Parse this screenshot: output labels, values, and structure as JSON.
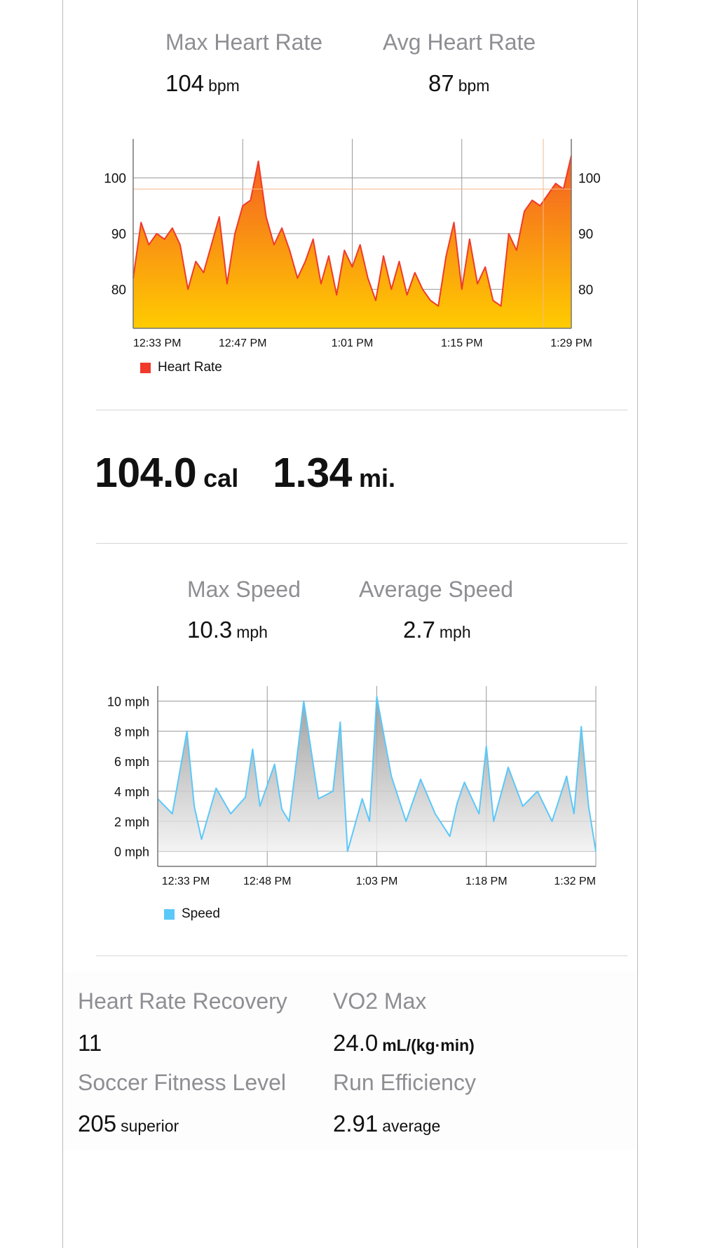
{
  "colors": {
    "heart_rate_line": "#f03a2b",
    "heart_rate_fill_top": "#f45c24",
    "heart_rate_fill_bottom": "#ffcc00",
    "speed_line": "#5bc8fa",
    "speed_fill": "#c9c9c9",
    "label_gray": "#8e8e93"
  },
  "heart_rate": {
    "max_label": "Max Heart Rate",
    "max_value": "104",
    "max_unit": "bpm",
    "avg_label": "Avg Heart Rate",
    "avg_value": "87",
    "avg_unit": "bpm",
    "legend": "Heart Rate"
  },
  "totals": {
    "calories_value": "104.0",
    "calories_unit": "cal",
    "distance_value": "1.34",
    "distance_unit": "mi."
  },
  "speed": {
    "max_label": "Max Speed",
    "max_value": "10.3",
    "max_unit": "mph",
    "avg_label": "Average Speed",
    "avg_value": "2.7",
    "avg_unit": "mph",
    "legend": "Speed"
  },
  "metrics": {
    "hrr_label": "Heart Rate Recovery",
    "hrr_value": "11",
    "vo2_label": "VO2 Max",
    "vo2_value": "24.0",
    "vo2_unit": "mL/(kg·min)",
    "sfl_label": "Soccer Fitness Level",
    "sfl_value": "205",
    "sfl_unit": "superior",
    "re_label": "Run Efficiency",
    "re_value": "2.91",
    "re_unit": "average"
  },
  "chart_data": [
    {
      "type": "area",
      "legend": [
        "Heart Rate"
      ],
      "x_ticks": [
        "12:33 PM",
        "12:47 PM",
        "1:01 PM",
        "1:15 PM",
        "1:29 PM"
      ],
      "y_ticks": [
        80,
        90,
        100
      ],
      "ylim": [
        73,
        107
      ],
      "reference_line": 98,
      "grid": true,
      "legend_position": "bottom-left",
      "series": [
        {
          "name": "Heart Rate",
          "x_minutes": [
            0,
            1,
            2,
            3,
            4,
            5,
            6,
            7,
            8,
            9,
            10,
            11,
            12,
            13,
            14,
            15,
            16,
            17,
            18,
            19,
            20,
            21,
            22,
            23,
            24,
            25,
            26,
            27,
            28,
            29,
            30,
            31,
            32,
            33,
            34,
            35,
            36,
            37,
            38,
            39,
            40,
            41,
            42,
            43,
            44,
            45,
            46,
            47,
            48,
            49,
            50,
            51,
            52,
            53,
            54,
            55,
            56
          ],
          "values": [
            82,
            92,
            88,
            90,
            89,
            91,
            88,
            80,
            85,
            83,
            88,
            93,
            81,
            90,
            95,
            96,
            103,
            93,
            88,
            91,
            87,
            82,
            85,
            89,
            81,
            86,
            79,
            87,
            84,
            88,
            82,
            78,
            86,
            80,
            85,
            79,
            83,
            80,
            78,
            77,
            86,
            92,
            80,
            89,
            81,
            84,
            78,
            77,
            90,
            87,
            94,
            96,
            95,
            97,
            99,
            98,
            104
          ]
        }
      ]
    },
    {
      "type": "area",
      "legend": [
        "Speed"
      ],
      "x_ticks": [
        "12:33 PM",
        "12:48 PM",
        "1:03 PM",
        "1:18 PM",
        "1:32 PM"
      ],
      "y_ticks": [
        "0 mph",
        "2 mph",
        "4 mph",
        "6 mph",
        "8 mph",
        "10 mph"
      ],
      "ylim": [
        -1,
        11
      ],
      "grid": true,
      "legend_position": "bottom-left",
      "series": [
        {
          "name": "Speed",
          "x_minutes": [
            0,
            2,
            4,
            5,
            6,
            8,
            10,
            12,
            13,
            14,
            16,
            17,
            18,
            20,
            22,
            24,
            25,
            26,
            28,
            29,
            30,
            32,
            34,
            36,
            38,
            40,
            41,
            42,
            44,
            45,
            46,
            48,
            50,
            52,
            54,
            56,
            57,
            58,
            59,
            60
          ],
          "values": [
            3.5,
            2.5,
            8.0,
            3.0,
            0.8,
            4.2,
            2.5,
            3.6,
            6.8,
            3.0,
            5.8,
            2.8,
            2.0,
            10.0,
            3.5,
            4.0,
            8.6,
            0,
            3.5,
            2.0,
            10.3,
            5.0,
            2.0,
            4.8,
            2.5,
            1.0,
            3.2,
            4.6,
            2.5,
            7.0,
            2.0,
            5.6,
            3.0,
            4.0,
            2.0,
            5.0,
            2.5,
            8.3,
            3.0,
            0
          ]
        }
      ]
    }
  ]
}
